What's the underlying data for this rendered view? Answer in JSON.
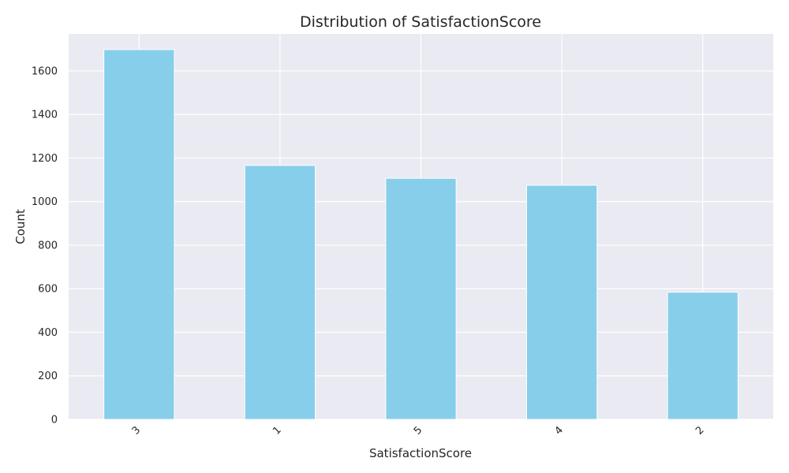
{
  "chart_data": {
    "type": "bar",
    "title": "Distribution of SatisfactionScore",
    "xlabel": "SatisfactionScore",
    "ylabel": "Count",
    "categories": [
      "3",
      "1",
      "5",
      "4",
      "2"
    ],
    "values": [
      1698,
      1166,
      1107,
      1075,
      584
    ],
    "ylim": [
      0,
      1770
    ],
    "yticks": [
      0,
      200,
      400,
      600,
      800,
      1000,
      1200,
      1400,
      1600
    ],
    "grid": true,
    "legend": "none",
    "x_tick_rotation_deg": 45,
    "colors": {
      "bar": "#87ceeb",
      "bar_edge": "#ffffff",
      "plot_background": "#eaeaf2",
      "grid": "#ffffff",
      "text": "#262626"
    }
  }
}
